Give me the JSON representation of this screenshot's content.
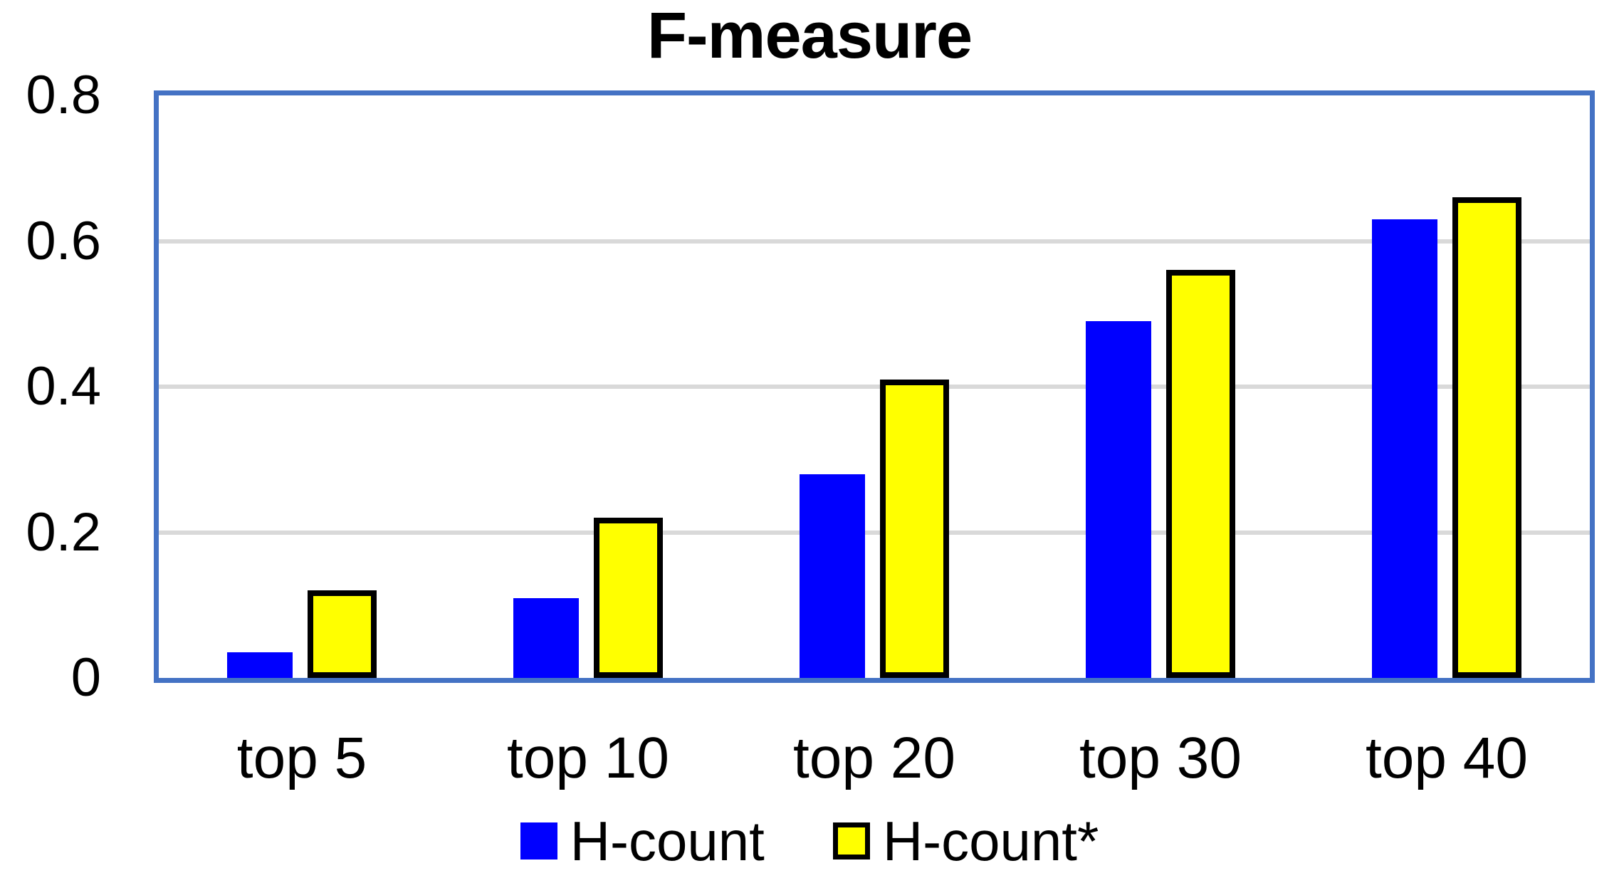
{
  "title": "F-measure",
  "chart_data": {
    "type": "bar",
    "title": "F-measure",
    "categories": [
      "top 5",
      "top 10",
      "top 20",
      "top 30",
      "top 40"
    ],
    "series": [
      {
        "name": "H-count",
        "color": "#0000ff",
        "border_color": null,
        "values": [
          0.035,
          0.11,
          0.28,
          0.49,
          0.63
        ]
      },
      {
        "name": "H-count*",
        "color": "#ffff00",
        "border_color": "#000000",
        "values": [
          0.12,
          0.22,
          0.41,
          0.56,
          0.66
        ]
      }
    ],
    "xlabel": "",
    "ylabel": "",
    "ylim": [
      0,
      0.8
    ],
    "yticks": [
      {
        "value": 0,
        "label": "0"
      },
      {
        "value": 0.2,
        "label": "0.2"
      },
      {
        "value": 0.4,
        "label": "0.4"
      },
      {
        "value": 0.6,
        "label": "0.6"
      },
      {
        "value": 0.8,
        "label": "0.8"
      }
    ],
    "grid": "horizontal",
    "gridline_color": "#d9d9d9",
    "plot_border_color": "#4472c4",
    "legend_position": "bottom"
  }
}
